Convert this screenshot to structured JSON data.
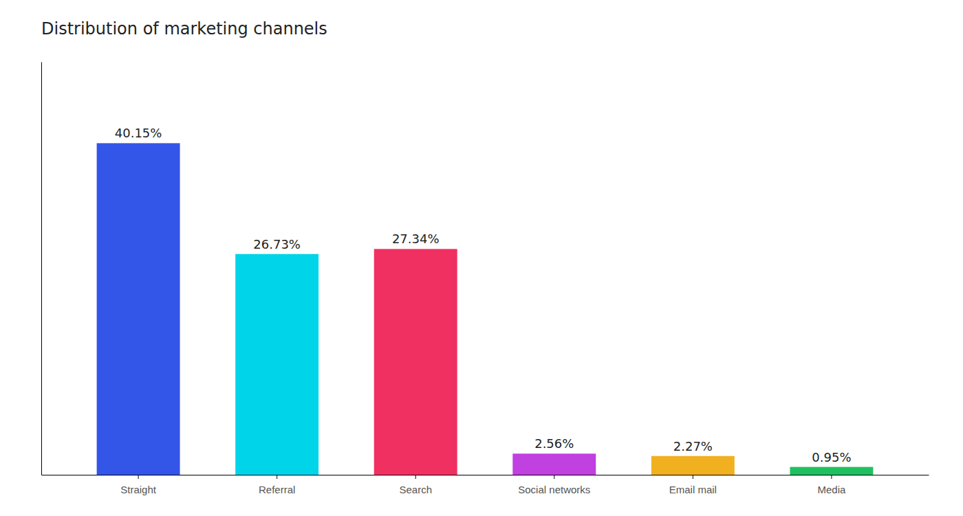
{
  "chart_data": {
    "type": "bar",
    "title": "Distribution of marketing channels",
    "categories": [
      "Straight",
      "Referral",
      "Search",
      "Social networks",
      "Email mail",
      "Media"
    ],
    "values": [
      40.15,
      26.73,
      27.34,
      2.56,
      2.27,
      0.95
    ],
    "value_labels": [
      "40.15%",
      "26.73%",
      "27.34%",
      "2.56%",
      "2.27%",
      "0.95%"
    ],
    "colors": [
      "#3355e8",
      "#00d4e8",
      "#f03060",
      "#c040e0",
      "#f0b020",
      "#20c060"
    ],
    "ylim": [
      0,
      50
    ],
    "data_labels": true,
    "tick_labels": "x",
    "grid": false
  }
}
